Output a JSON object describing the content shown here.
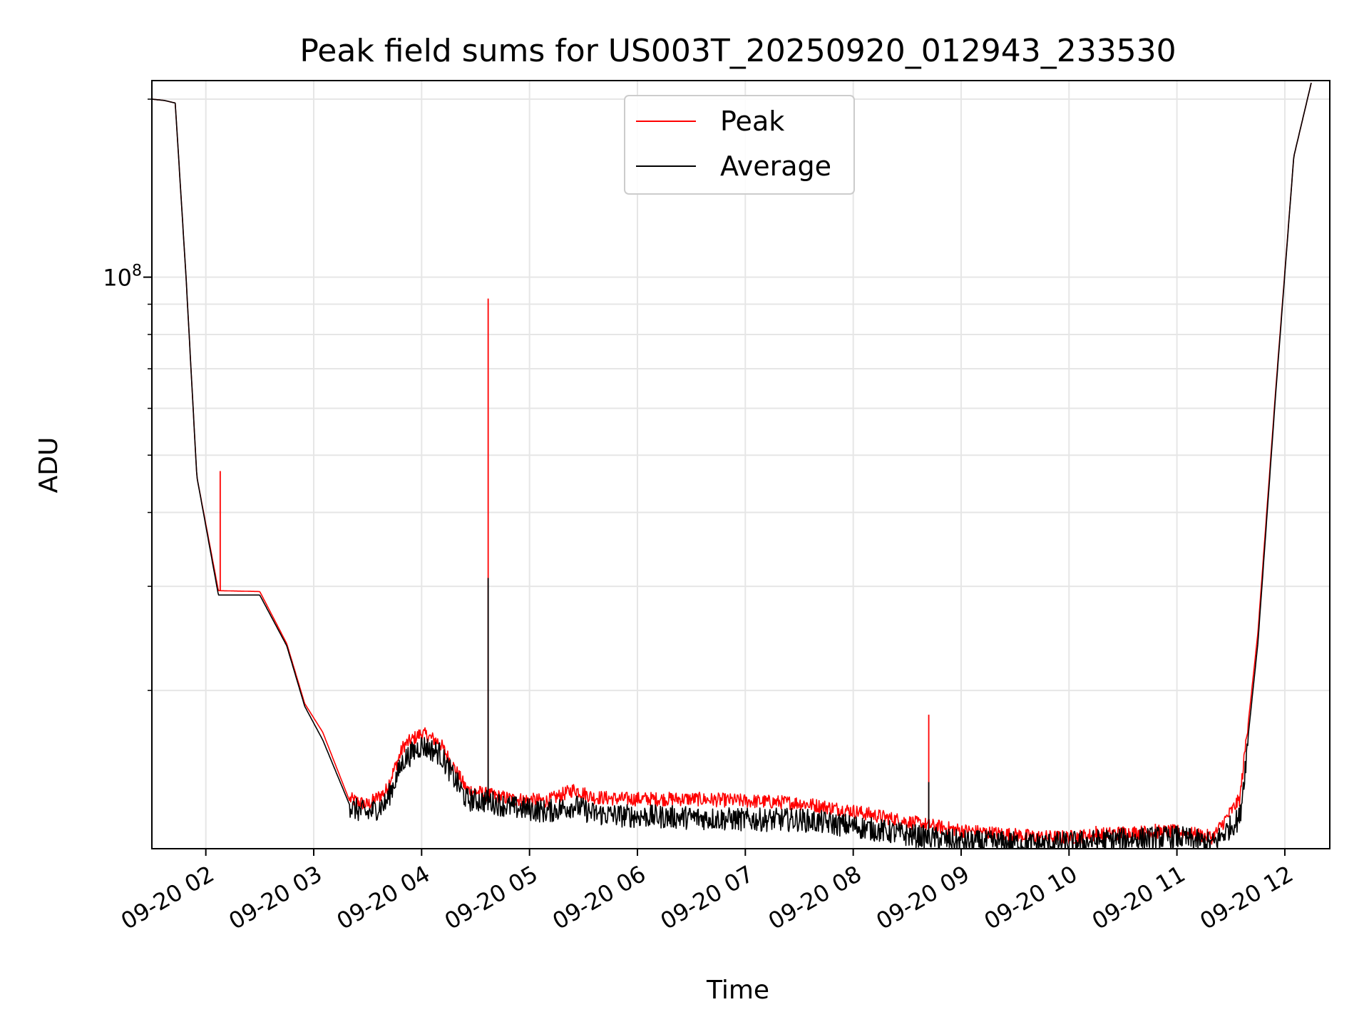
{
  "chart_data": {
    "type": "line",
    "title": "Peak field sums for US003T_20250920_012943_233530",
    "xlabel": "Time",
    "ylabel": "ADU",
    "yscale": "log",
    "grid": true,
    "legend_position": "top-center",
    "xlim": [
      "09-20 01:30",
      "09-20 12:25"
    ],
    "ylim": [
      10800000,
      215000000
    ],
    "x_ticks": [
      "09-20 02",
      "09-20 03",
      "09-20 04",
      "09-20 05",
      "09-20 06",
      "09-20 07",
      "09-20 08",
      "09-20 09",
      "09-20 10",
      "09-20 11",
      "09-20 12"
    ],
    "y_ticks": [
      {
        "label": "10",
        "exponent": "8",
        "value": 100000000
      }
    ],
    "series": [
      {
        "name": "Peak",
        "color": "#ff0000",
        "points": [
          [
            "09-20 01:30",
            200000000
          ],
          [
            "09-20 01:37",
            199000000
          ],
          [
            "09-20 01:43",
            197000000
          ],
          [
            "09-20 01:49",
            100000000
          ],
          [
            "09-20 01:55",
            46000000
          ],
          [
            "09-20 02:07",
            29500000
          ],
          [
            "09-20 02:30",
            29400000
          ],
          [
            "09-20 02:45",
            24000000
          ],
          [
            "09-20 02:55",
            19000000
          ],
          [
            "09-20 03:05",
            17000000
          ],
          [
            "09-20 03:20",
            13000000
          ],
          [
            "09-20 03:30",
            12700000
          ],
          [
            "09-20 03:40",
            13400000
          ],
          [
            "09-20 03:50",
            16000000
          ],
          [
            "09-20 04:00",
            16800000
          ],
          [
            "09-20 04:10",
            16200000
          ],
          [
            "09-20 04:25",
            13500000
          ],
          [
            "09-20 04:38",
            13200000
          ],
          [
            "09-20 04:50",
            13000000
          ],
          [
            "09-20 05:10",
            12900000
          ],
          [
            "09-20 05:25",
            13500000
          ],
          [
            "09-20 05:35",
            13100000
          ],
          [
            "09-20 05:50",
            13000000
          ],
          [
            "09-20 06:30",
            13000000
          ],
          [
            "09-20 07:00",
            12900000
          ],
          [
            "09-20 07:30",
            12800000
          ],
          [
            "09-20 08:00",
            12400000
          ],
          [
            "09-20 08:30",
            11900000
          ],
          [
            "09-20 09:00",
            11500000
          ],
          [
            "09-20 09:30",
            11300000
          ],
          [
            "09-20 09:45",
            11200000
          ],
          [
            "09-20 10:00",
            11200000
          ],
          [
            "09-20 10:30",
            11400000
          ],
          [
            "09-20 11:00",
            11450000
          ],
          [
            "09-20 11:20",
            11200000
          ],
          [
            "09-20 11:35",
            13000000
          ],
          [
            "09-20 11:45",
            25000000
          ],
          [
            "09-20 11:55",
            65000000
          ],
          [
            "09-20 12:05",
            160000000
          ],
          [
            "09-20 12:15",
            215000000
          ]
        ],
        "spikes": [
          [
            "09-20 02:08",
            47000000
          ],
          [
            "09-20 04:37",
            92000000
          ],
          [
            "09-20 08:42",
            18200000
          ],
          [
            "09-20 10:08",
            11600000
          ],
          [
            "09-20 10:15",
            11800000
          ],
          [
            "09-20 10:48",
            11900000
          ]
        ]
      },
      {
        "name": "Average",
        "color": "#000000",
        "points": [
          [
            "09-20 01:30",
            200000000
          ],
          [
            "09-20 01:37",
            199000000
          ],
          [
            "09-20 01:43",
            197000000
          ],
          [
            "09-20 01:49",
            100000000
          ],
          [
            "09-20 01:55",
            46000000
          ],
          [
            "09-20 02:07",
            29000000
          ],
          [
            "09-20 02:30",
            29000000
          ],
          [
            "09-20 02:45",
            23800000
          ],
          [
            "09-20 02:55",
            18800000
          ],
          [
            "09-20 03:05",
            16500000
          ],
          [
            "09-20 03:20",
            12800000
          ],
          [
            "09-20 03:30",
            12500000
          ],
          [
            "09-20 03:40",
            13000000
          ],
          [
            "09-20 03:50",
            15400000
          ],
          [
            "09-20 04:00",
            16300000
          ],
          [
            "09-20 04:10",
            15800000
          ],
          [
            "09-20 04:25",
            13200000
          ],
          [
            "09-20 04:38",
            13100000
          ],
          [
            "09-20 04:50",
            12800000
          ],
          [
            "09-20 05:10",
            12600000
          ],
          [
            "09-20 05:25",
            12900000
          ],
          [
            "09-20 05:35",
            12500000
          ],
          [
            "09-20 05:50",
            12400000
          ],
          [
            "09-20 06:30",
            12300000
          ],
          [
            "09-20 07:00",
            12200000
          ],
          [
            "09-20 07:30",
            12200000
          ],
          [
            "09-20 08:00",
            11900000
          ],
          [
            "09-20 08:30",
            11500000
          ],
          [
            "09-20 09:00",
            11200000
          ],
          [
            "09-20 09:30",
            11150000
          ],
          [
            "09-20 09:45",
            11100000
          ],
          [
            "09-20 10:00",
            11150000
          ],
          [
            "09-20 10:30",
            11300000
          ],
          [
            "09-20 11:00",
            11400000
          ],
          [
            "09-20 11:20",
            11100000
          ],
          [
            "09-20 11:35",
            12300000
          ],
          [
            "09-20 11:45",
            24000000
          ],
          [
            "09-20 11:55",
            64000000
          ],
          [
            "09-20 12:05",
            160000000
          ],
          [
            "09-20 12:15",
            215000000
          ]
        ],
        "spikes": [
          [
            "09-20 04:37",
            31000000
          ],
          [
            "09-20 08:42",
            14000000
          ]
        ]
      }
    ]
  }
}
